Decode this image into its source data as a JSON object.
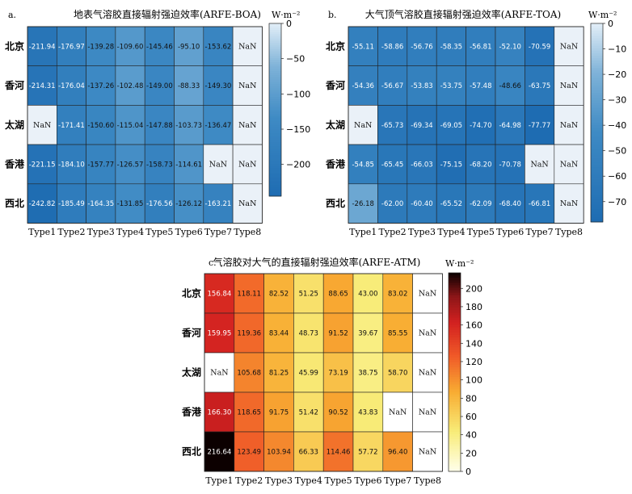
{
  "chart_data": [
    {
      "id": "a",
      "panel_label": "a.",
      "type": "heatmap",
      "title": "地表气溶胶直接辐射强迫效率(ARFE-BOA)",
      "unit": "W·m⁻²",
      "colormap": "blues",
      "rows": [
        "北京",
        "香河",
        "太湖",
        "香港",
        "西北"
      ],
      "columns": [
        "Type1",
        "Type2",
        "Type3",
        "Type4",
        "Type5",
        "Type6",
        "Type7",
        "Type8"
      ],
      "values": [
        [
          -211.94,
          -176.97,
          -139.28,
          -109.6,
          -145.46,
          -95.1,
          -153.62,
          null
        ],
        [
          -214.31,
          -176.04,
          -137.26,
          -102.48,
          -149.0,
          -88.33,
          -149.3,
          null
        ],
        [
          null,
          -171.41,
          -150.6,
          -115.04,
          -147.88,
          -103.73,
          -136.47,
          null
        ],
        [
          -221.15,
          -184.1,
          -157.77,
          -126.57,
          -158.73,
          -114.61,
          null,
          null
        ],
        [
          -242.82,
          -185.49,
          -164.35,
          -131.85,
          -176.56,
          -126.12,
          -163.21,
          null
        ]
      ],
      "cell_labels": [
        [
          "-211.94",
          "-176.97",
          "-139.28",
          "-109.60",
          "-145.46",
          "-95.10",
          "-153.62",
          "NaN"
        ],
        [
          "-214.31",
          "-176.04",
          "-137.26",
          "-102.48",
          "-149.00",
          "-88.33",
          "-149.30",
          "NaN"
        ],
        [
          "NaN",
          "-171.41",
          "-150.60",
          "-115.04",
          "-147.88",
          "-103.73",
          "-136.47",
          "NaN"
        ],
        [
          "-221.15",
          "-184.10",
          "-157.77",
          "-126.57",
          "-158.73",
          "-114.61",
          "NaN",
          "NaN"
        ],
        [
          "-242.82",
          "-185.49",
          "-164.35",
          "-131.85",
          "-176.56",
          "-126.12",
          "-163.21",
          "NaN"
        ]
      ],
      "vmin": -245,
      "vmax": 0,
      "colorbar_ticks": [
        0,
        -50,
        -100,
        -150,
        -200
      ],
      "colorbar_tick_labels": [
        "0",
        "−50",
        "−100",
        "−150",
        "−200"
      ]
    },
    {
      "id": "b",
      "panel_label": "b.",
      "type": "heatmap",
      "title": "大气顶气溶胶直接辐射强迫效率(ARFE-TOA)",
      "unit": "W·m⁻²",
      "colormap": "blues",
      "rows": [
        "北京",
        "香河",
        "太湖",
        "香港",
        "西北"
      ],
      "columns": [
        "Type1",
        "Type2",
        "Type3",
        "Type4",
        "Type5",
        "Type6",
        "Type7",
        "Type8"
      ],
      "values": [
        [
          -55.11,
          -58.86,
          -56.76,
          -58.35,
          -56.81,
          -52.1,
          -70.59,
          null
        ],
        [
          -54.36,
          -56.67,
          -53.83,
          -53.75,
          -57.48,
          -48.66,
          -63.75,
          null
        ],
        [
          null,
          -65.73,
          -69.34,
          -69.05,
          -74.7,
          -64.98,
          -77.77,
          null
        ],
        [
          -54.85,
          -65.45,
          -66.03,
          -75.15,
          -68.2,
          -70.78,
          null,
          null
        ],
        [
          -26.18,
          -62.0,
          -60.4,
          -65.52,
          -62.09,
          -68.4,
          -66.81,
          null
        ]
      ],
      "cell_labels": [
        [
          "-55.11",
          "-58.86",
          "-56.76",
          "-58.35",
          "-56.81",
          "-52.10",
          "-70.59",
          "NaN"
        ],
        [
          "-54.36",
          "-56.67",
          "-53.83",
          "-53.75",
          "-57.48",
          "-48.66",
          "-63.75",
          "NaN"
        ],
        [
          "NaN",
          "-65.73",
          "-69.34",
          "-69.05",
          "-74.70",
          "-64.98",
          "-77.77",
          "NaN"
        ],
        [
          "-54.85",
          "-65.45",
          "-66.03",
          "-75.15",
          "-68.20",
          "-70.78",
          "NaN",
          "NaN"
        ],
        [
          "-26.18",
          "-62.00",
          "-60.40",
          "-65.52",
          "-62.09",
          "-68.40",
          "-66.81",
          "NaN"
        ]
      ],
      "vmin": -78,
      "vmax": 0,
      "colorbar_ticks": [
        0,
        -10,
        -20,
        -30,
        -40,
        -50,
        -60,
        -70
      ],
      "colorbar_tick_labels": [
        "0",
        "−10",
        "−20",
        "−30",
        "−40",
        "−50",
        "−60",
        "−70"
      ]
    },
    {
      "id": "c",
      "panel_label": "c.",
      "type": "heatmap",
      "title": "气溶胶对大气的直接辐射强迫效率(ARFE-ATM)",
      "unit": "W·m⁻²",
      "colormap": "hot_r",
      "rows": [
        "北京",
        "香河",
        "太湖",
        "香港",
        "西北"
      ],
      "columns": [
        "Type1",
        "Type2",
        "Type3",
        "Type4",
        "Type5",
        "Type6",
        "Type7",
        "Type8"
      ],
      "values": [
        [
          156.84,
          118.11,
          82.52,
          51.25,
          88.65,
          43.0,
          83.02,
          null
        ],
        [
          159.95,
          119.36,
          83.44,
          48.73,
          91.52,
          39.67,
          85.55,
          null
        ],
        [
          null,
          105.68,
          81.25,
          45.99,
          73.19,
          38.75,
          58.7,
          null
        ],
        [
          166.3,
          118.65,
          91.75,
          51.42,
          90.52,
          43.83,
          null,
          null
        ],
        [
          216.64,
          123.49,
          103.94,
          66.33,
          114.46,
          57.72,
          96.4,
          null
        ]
      ],
      "cell_labels": [
        [
          "156.84",
          "118.11",
          "82.52",
          "51.25",
          "88.65",
          "43.00",
          "83.02",
          "NaN"
        ],
        [
          "159.95",
          "119.36",
          "83.44",
          "48.73",
          "91.52",
          "39.67",
          "85.55",
          "NaN"
        ],
        [
          "NaN",
          "105.68",
          "81.25",
          "45.99",
          "73.19",
          "38.75",
          "58.70",
          "NaN"
        ],
        [
          "166.30",
          "118.65",
          "91.75",
          "51.42",
          "90.52",
          "43.83",
          "NaN",
          "NaN"
        ],
        [
          "216.64",
          "123.49",
          "103.94",
          "66.33",
          "114.46",
          "57.72",
          "96.40",
          "NaN"
        ]
      ],
      "vmin": 0,
      "vmax": 217,
      "colorbar_ticks": [
        0,
        20,
        40,
        60,
        80,
        100,
        120,
        140,
        160,
        180,
        200
      ],
      "colorbar_tick_labels": [
        "0",
        "20",
        "40",
        "60",
        "80",
        "100",
        "120",
        "140",
        "160",
        "180",
        "200"
      ]
    }
  ]
}
